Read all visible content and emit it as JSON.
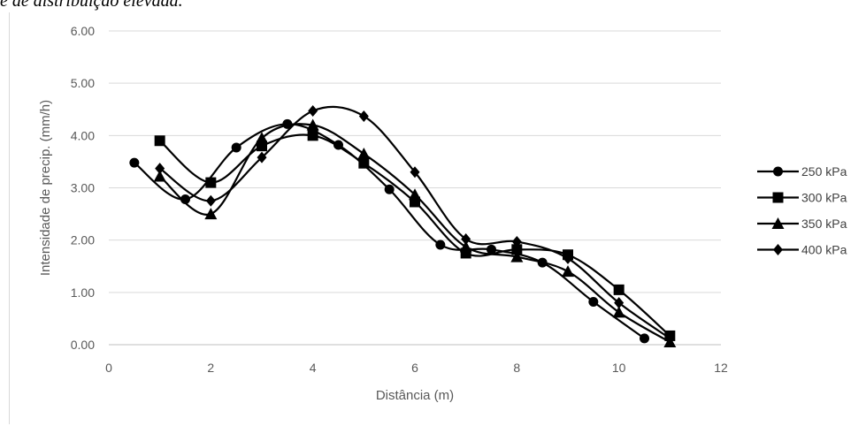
{
  "page": {
    "top_text": "e de distribuição elevada."
  },
  "chart_data": {
    "type": "line",
    "smooth": true,
    "xlabel": "Distância (m)",
    "ylabel": "Intensidade de precip. (mm/h)",
    "xlim": [
      0,
      12
    ],
    "ylim": [
      0,
      6
    ],
    "xticks": [
      0,
      2,
      4,
      6,
      8,
      10,
      12
    ],
    "xtick_labels": [
      "0",
      "2",
      "4",
      "6",
      "8",
      "10",
      "12"
    ],
    "yticks": [
      0,
      1,
      2,
      3,
      4,
      5,
      6
    ],
    "ytick_labels": [
      "0.00",
      "1.00",
      "2.00",
      "3.00",
      "4.00",
      "5.00",
      "6.00"
    ],
    "grid": "horizontal",
    "legend_position": "right",
    "series": [
      {
        "name": "250 kPa",
        "marker": "circle",
        "color": "#000000",
        "x": [
          0.5,
          1.5,
          2.5,
          3.5,
          4.5,
          5.5,
          6.5,
          7.5,
          8.5,
          9.5,
          10.5
        ],
        "y": [
          3.48,
          2.78,
          3.77,
          4.22,
          3.82,
          2.97,
          1.91,
          1.82,
          1.57,
          0.82,
          0.12
        ]
      },
      {
        "name": "300 kPa",
        "marker": "square",
        "color": "#000000",
        "x": [
          1,
          2,
          3,
          4,
          5,
          6,
          7,
          8,
          9,
          10,
          11
        ],
        "y": [
          3.9,
          3.1,
          3.8,
          4.0,
          3.47,
          2.73,
          1.75,
          1.82,
          1.72,
          1.05,
          0.17
        ]
      },
      {
        "name": "350 kPa",
        "marker": "triangle",
        "color": "#000000",
        "x": [
          1,
          2,
          3,
          4,
          5,
          6,
          7,
          8,
          9,
          10,
          11
        ],
        "y": [
          3.22,
          2.5,
          3.95,
          4.2,
          3.65,
          2.87,
          1.87,
          1.68,
          1.4,
          0.62,
          0.05
        ]
      },
      {
        "name": "400 kPa",
        "marker": "diamond",
        "color": "#000000",
        "x": [
          1,
          2,
          3,
          4,
          5,
          6,
          7,
          8,
          9,
          10,
          11
        ],
        "y": [
          3.37,
          2.75,
          3.58,
          4.47,
          4.37,
          3.3,
          2.02,
          1.97,
          1.65,
          0.8,
          0.12
        ]
      }
    ]
  }
}
